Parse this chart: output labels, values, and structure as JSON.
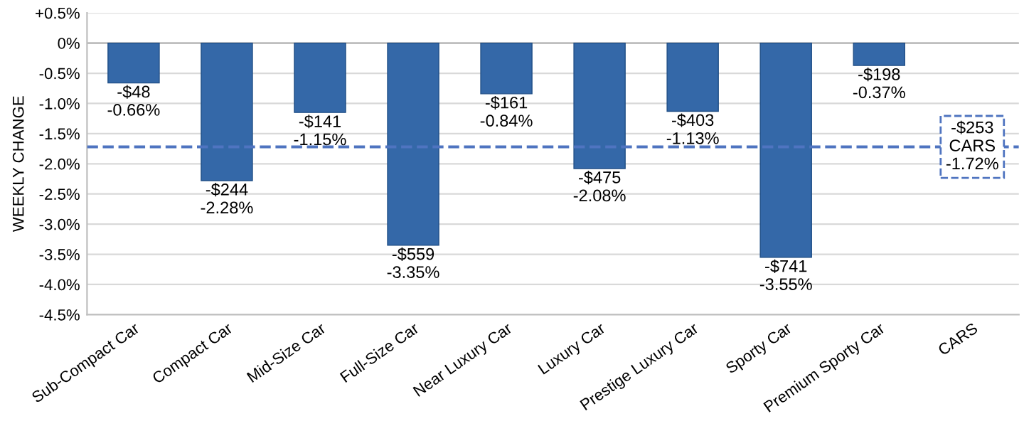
{
  "chart_data": {
    "type": "bar",
    "ylabel": "WEEKLY CHANGE",
    "categories": [
      "Sub-Compact Car",
      "Compact Car",
      "Mid-Size Car",
      "Full-Size Car",
      "Near Luxury Car",
      "Luxury Car",
      "Prestige Luxury Car",
      "Sporty Car",
      "Premium Sporty Car",
      "CARS"
    ],
    "values": [
      -0.66,
      -2.28,
      -1.15,
      -3.35,
      -0.84,
      -2.08,
      -1.13,
      -3.55,
      -0.37,
      null
    ],
    "value_labels": [
      "-$48\n-0.66%",
      "-$244\n-2.28%",
      "-$141\n-1.15%",
      "-$559\n-3.35%",
      "-$161\n-0.84%",
      "-$475\n-2.08%",
      "-$403\n-1.13%",
      "-$741\n-3.55%",
      "-$198\n-0.37%",
      null
    ],
    "color": "#3468a8",
    "ylim": [
      -4.5,
      0.5
    ],
    "yticks": [
      {
        "value": 0.5,
        "label": "+0.5%"
      },
      {
        "value": 0,
        "label": "0%"
      },
      {
        "value": -0.5,
        "label": "-0.5%"
      },
      {
        "value": -1,
        "label": "-1.0%"
      },
      {
        "value": -1.5,
        "label": "-1.5%"
      },
      {
        "value": -2,
        "label": "-2.0%"
      },
      {
        "value": -2.5,
        "label": "-2.5%"
      },
      {
        "value": -3,
        "label": "-3.0%"
      },
      {
        "value": -3.5,
        "label": "-3.5%"
      },
      {
        "value": -4,
        "label": "-4.0%"
      },
      {
        "value": -4.5,
        "label": "-4.5%"
      }
    ],
    "grid": "y",
    "ref_lines": [
      {
        "axis": "y",
        "value": -1.72,
        "label": "-$253\nCARS\n-1.72%",
        "color": "#4f74c0",
        "line_style": "dashed"
      }
    ]
  }
}
